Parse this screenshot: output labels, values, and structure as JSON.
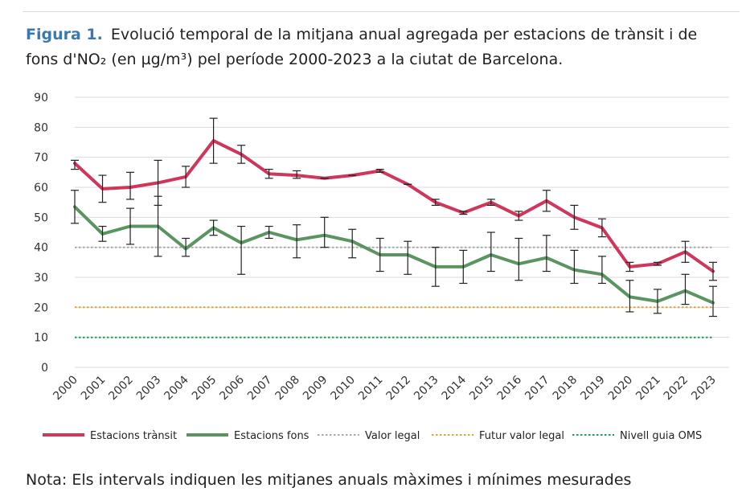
{
  "figure": {
    "label": "Figura 1.",
    "title": "Evolució temporal de la mitjana anual agregada per estacions de trànsit i de fons d'NO₂ (en µg/m³) pel període 2000-2023 a la ciutat de Barcelona.",
    "note": "Nota: Els intervals indiquen les mitjanes anuals màximes i mínimes mesurades"
  },
  "chart_data": {
    "type": "line",
    "title": "",
    "xlabel": "",
    "ylabel": "",
    "ylim": [
      0,
      90
    ],
    "yticks": [
      0,
      10,
      20,
      30,
      40,
      50,
      60,
      70,
      80,
      90
    ],
    "grid": "horizontal",
    "legend_position": "bottom",
    "x": [
      "2000",
      "2001",
      "2002",
      "2003",
      "2004",
      "2005",
      "2006",
      "2007",
      "2008",
      "2009",
      "2010",
      "2011",
      "2012",
      "2013",
      "2014",
      "2015",
      "2016",
      "2017",
      "2018",
      "2019",
      "2020",
      "2021",
      "2022",
      "2023"
    ],
    "series": [
      {
        "name": "Estacions trànsit",
        "color": "#d1355b",
        "style": "solid",
        "values": [
          68,
          59.5,
          60,
          61.5,
          63.5,
          75.5,
          71,
          64.5,
          64,
          63,
          64,
          65.5,
          61,
          55,
          51.5,
          55,
          50.5,
          55.5,
          50,
          46.5,
          33.5,
          34.5,
          38.5,
          32
        ],
        "max": [
          69,
          64,
          65,
          69,
          67,
          83,
          74,
          66,
          65.5,
          63,
          64,
          66,
          61,
          56,
          52,
          56,
          52,
          59,
          54,
          49.5,
          35,
          35,
          42,
          35
        ],
        "min": [
          66,
          55,
          56,
          54,
          60,
          68,
          68,
          63,
          63,
          63,
          64,
          65,
          61,
          54,
          51,
          54,
          49,
          52,
          46,
          43.5,
          32,
          34,
          35,
          29
        ]
      },
      {
        "name": "Estacions fons",
        "color": "#5a9460",
        "style": "solid",
        "values": [
          53.5,
          44.5,
          47,
          47,
          39.5,
          46.5,
          41.5,
          45,
          42.5,
          44,
          42,
          37.5,
          37.5,
          33.5,
          33.5,
          37.5,
          34.5,
          36.5,
          32.5,
          31,
          23.5,
          22,
          25.5,
          21.5
        ],
        "max": [
          59,
          47,
          53,
          57,
          43,
          49,
          47,
          47,
          47.5,
          50,
          46,
          43,
          42,
          40,
          39,
          45,
          43,
          44,
          39,
          37,
          29,
          26,
          31,
          27
        ],
        "min": [
          48,
          42,
          41,
          37,
          37,
          44,
          31,
          43,
          36.5,
          40,
          36.5,
          32,
          31,
          27,
          28,
          32,
          29,
          32,
          28,
          28,
          18.5,
          18,
          21,
          17
        ]
      },
      {
        "name": "Valor legal",
        "color": "#aaaaaa",
        "style": "dotted",
        "values": [
          40,
          40,
          40,
          40,
          40,
          40,
          40,
          40,
          40,
          40,
          40,
          40,
          40,
          40,
          40,
          40,
          40,
          40,
          40,
          40,
          40,
          40,
          40,
          40
        ]
      },
      {
        "name": "Futur valor legal",
        "color": "#e8a13a",
        "style": "dotted",
        "values": [
          20,
          20,
          20,
          20,
          20,
          20,
          20,
          20,
          20,
          20,
          20,
          20,
          20,
          20,
          20,
          20,
          20,
          20,
          20,
          20,
          20,
          20,
          20,
          20
        ]
      },
      {
        "name": "Nivell guia OMS",
        "color": "#1aa05a",
        "style": "dotted",
        "values": [
          10,
          10,
          10,
          10,
          10,
          10,
          10,
          10,
          10,
          10,
          10,
          10,
          10,
          10,
          10,
          10,
          10,
          10,
          10,
          10,
          10,
          10,
          10,
          10
        ]
      }
    ]
  }
}
